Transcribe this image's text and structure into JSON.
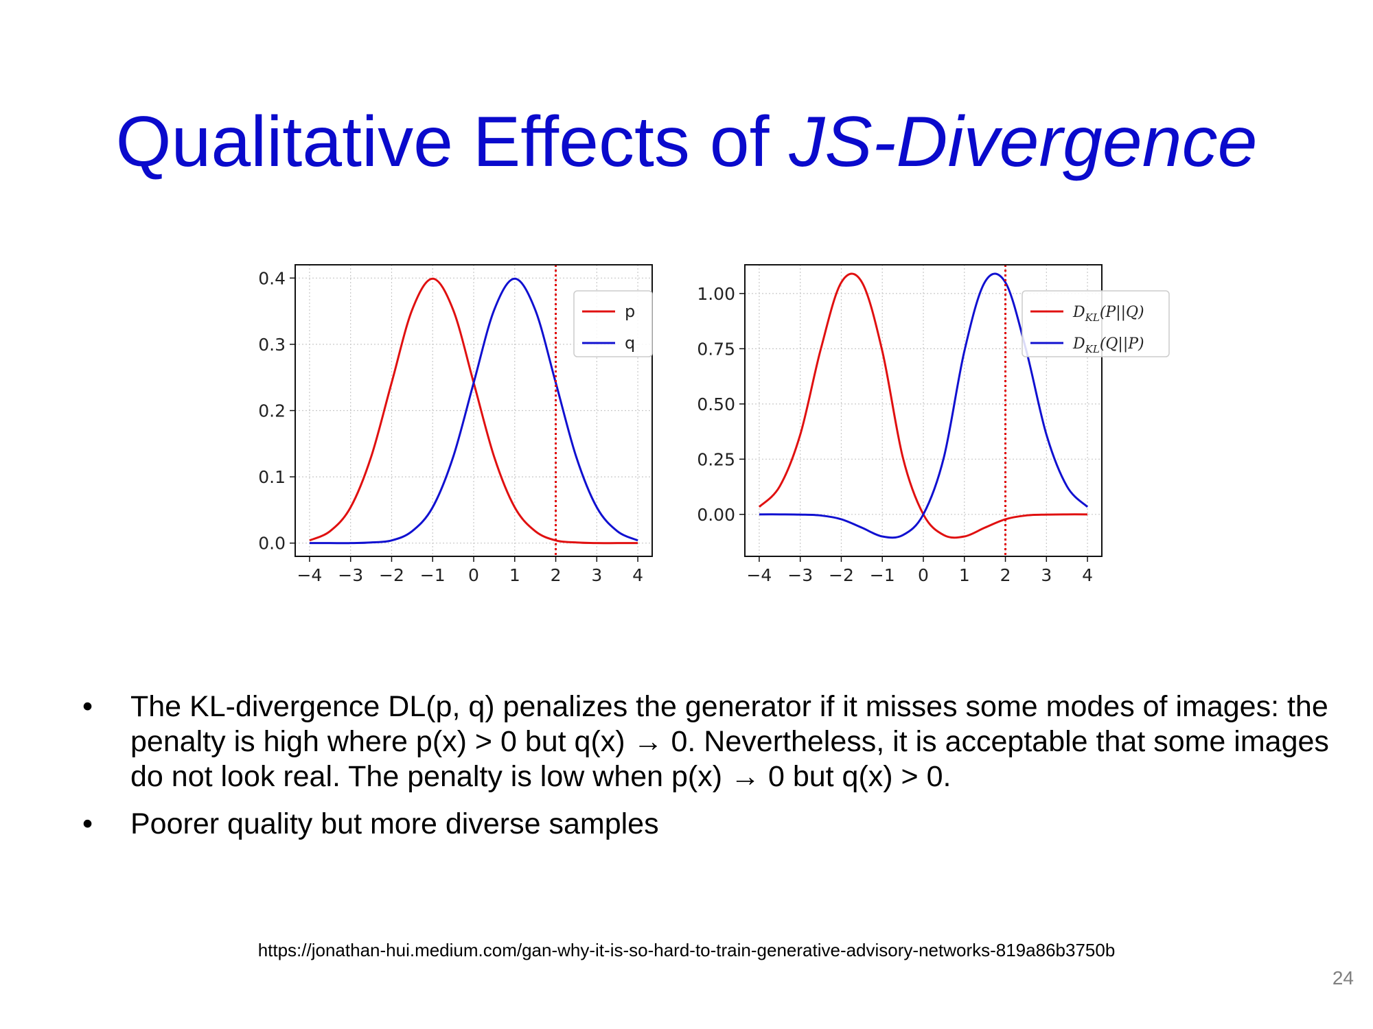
{
  "slide": {
    "title_plain": "Qualitative Effects of ",
    "title_italic": "JS-Divergence",
    "bullets": [
      "The KL-divergence DL(p, q) penalizes the generator if it misses some modes of images: the penalty is high where p(x) > 0 but q(x) → 0. Nevertheless, it is acceptable that some images do not look real. The penalty is low when p(x) → 0 but q(x) > 0.",
      "Poorer quality but more diverse samples"
    ],
    "bullet_symbol": "•",
    "source": "https://jonathan-hui.medium.com/gan-why-it-is-so-hard-to-train-generative-advisory-networks-819a86b3750b",
    "page_number": "24",
    "title_color": "#0a0acc"
  },
  "chart_data": [
    {
      "type": "line",
      "xlim": [
        -4.35,
        4.35
      ],
      "ylim": [
        -0.02,
        0.42
      ],
      "xticks": [
        -4,
        -3,
        -2,
        -1,
        0,
        1,
        2,
        3,
        4
      ],
      "xtick_labels": [
        "−4",
        "−3",
        "−2",
        "−1",
        "0",
        "1",
        "2",
        "3",
        "4"
      ],
      "yticks": [
        0.0,
        0.1,
        0.2,
        0.3,
        0.4
      ],
      "ytick_labels": [
        "0.0",
        "0.1",
        "0.2",
        "0.3",
        "0.4"
      ],
      "grid": true,
      "vline": {
        "x": 2,
        "color": "#e00000",
        "style": "dotted"
      },
      "legend_position": "upper-right",
      "series": [
        {
          "name": "p",
          "color": "#e01010",
          "x": [
            -4,
            -3.5,
            -3,
            -2.5,
            -2,
            -1.5,
            -1,
            -0.5,
            0,
            0.5,
            1,
            1.5,
            2,
            2.5,
            3,
            3.5,
            4
          ],
          "values": [
            0.004,
            0.018,
            0.054,
            0.13,
            0.242,
            0.352,
            0.399,
            0.352,
            0.242,
            0.13,
            0.054,
            0.018,
            0.004,
            0.001,
            0.0,
            0.0,
            0.0
          ]
        },
        {
          "name": "q",
          "color": "#1010d0",
          "x": [
            -4,
            -3.5,
            -3,
            -2.5,
            -2,
            -1.5,
            -1,
            -0.5,
            0,
            0.5,
            1,
            1.5,
            2,
            2.5,
            3,
            3.5,
            4
          ],
          "values": [
            0.0,
            0.0,
            0.0,
            0.001,
            0.004,
            0.018,
            0.054,
            0.13,
            0.242,
            0.352,
            0.399,
            0.352,
            0.242,
            0.13,
            0.054,
            0.018,
            0.004
          ]
        }
      ]
    },
    {
      "type": "line",
      "xlim": [
        -4.35,
        4.35
      ],
      "ylim": [
        -0.19,
        1.13
      ],
      "xticks": [
        -4,
        -3,
        -2,
        -1,
        0,
        1,
        2,
        3,
        4
      ],
      "xtick_labels": [
        "−4",
        "−3",
        "−2",
        "−1",
        "0",
        "1",
        "2",
        "3",
        "4"
      ],
      "yticks": [
        0.0,
        0.25,
        0.5,
        0.75,
        1.0
      ],
      "ytick_labels": [
        "0.00",
        "0.25",
        "0.50",
        "0.75",
        "1.00"
      ],
      "grid": true,
      "vline": {
        "x": 2,
        "color": "#e00000",
        "style": "dotted"
      },
      "legend_position": "upper-right",
      "series": [
        {
          "name": "D_KL(P||Q)",
          "name_main": "D",
          "name_sub": "KL",
          "name_arg": "(P||Q)",
          "color": "#e01010",
          "x": [
            -4,
            -3.5,
            -3,
            -2.5,
            -2,
            -1.5,
            -1,
            -0.5,
            0,
            0.5,
            1,
            1.5,
            2,
            2.5,
            3,
            3.5,
            4
          ],
          "values": [
            0.034,
            0.127,
            0.361,
            0.748,
            1.05,
            1.052,
            0.739,
            0.258,
            0.0,
            -0.094,
            -0.1,
            -0.06,
            -0.022,
            -0.005,
            -0.001,
            0.0,
            0.0
          ]
        },
        {
          "name": "D_KL(Q||P)",
          "name_main": "D",
          "name_sub": "KL",
          "name_arg": "(Q||P)",
          "color": "#1010d0",
          "x": [
            -4,
            -3.5,
            -3,
            -2.5,
            -2,
            -1.5,
            -1,
            -0.5,
            0,
            0.5,
            1,
            1.5,
            2,
            2.5,
            3,
            3.5,
            4
          ],
          "values": [
            0.0,
            0.0,
            -0.001,
            -0.005,
            -0.022,
            -0.06,
            -0.1,
            -0.094,
            0.0,
            0.258,
            0.739,
            1.052,
            1.05,
            0.748,
            0.361,
            0.127,
            0.034
          ]
        }
      ]
    }
  ]
}
